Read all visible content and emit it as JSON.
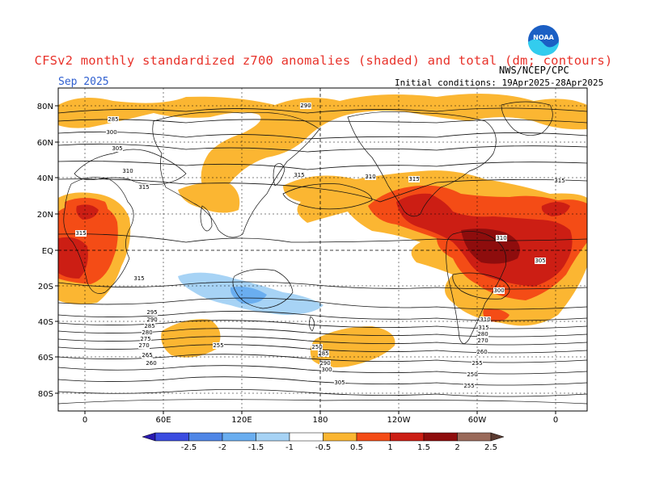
{
  "header": {
    "title": "CFSv2 monthly standardized z700 anomalies (shaded) and total (dm; contours)",
    "month": "Sep 2025",
    "agency": "NWS/NCEP/CPC",
    "initial_conditions": "Initial conditions: 19Apr2025-28Apr2025",
    "logo_text": "NOAA"
  },
  "map": {
    "lat_labels": [
      "80N",
      "60N",
      "40N",
      "20N",
      "EQ",
      "20S",
      "40S",
      "60S",
      "80S"
    ],
    "lon_labels": [
      "0",
      "60E",
      "120E",
      "180",
      "120W",
      "60W",
      "0"
    ],
    "contour_labels": [
      "290",
      "285",
      "300",
      "305",
      "310",
      "315",
      "315",
      "310",
      "315",
      "315",
      "315",
      "315",
      "310",
      "305",
      "300",
      "295",
      "290",
      "285",
      "280",
      "275",
      "270",
      "265",
      "260",
      "255",
      "250",
      "285",
      "290",
      "300",
      "305",
      "310",
      "315",
      "280",
      "270",
      "260",
      "255",
      "250",
      "255"
    ]
  },
  "colorbar": {
    "levels": [
      "-2.5",
      "-2",
      "-1.5",
      "-1",
      "-0.5",
      "0.5",
      "1",
      "1.5",
      "2",
      "2.5"
    ],
    "colors": [
      "#2a1ab0",
      "#3b4ce0",
      "#4f86e6",
      "#6aaef0",
      "#a7d3f5",
      "#ffffff",
      "#fbb632",
      "#f44c16",
      "#cc1e14",
      "#8e0d0d",
      "#9a6a5a",
      "#5a3a30"
    ]
  }
}
